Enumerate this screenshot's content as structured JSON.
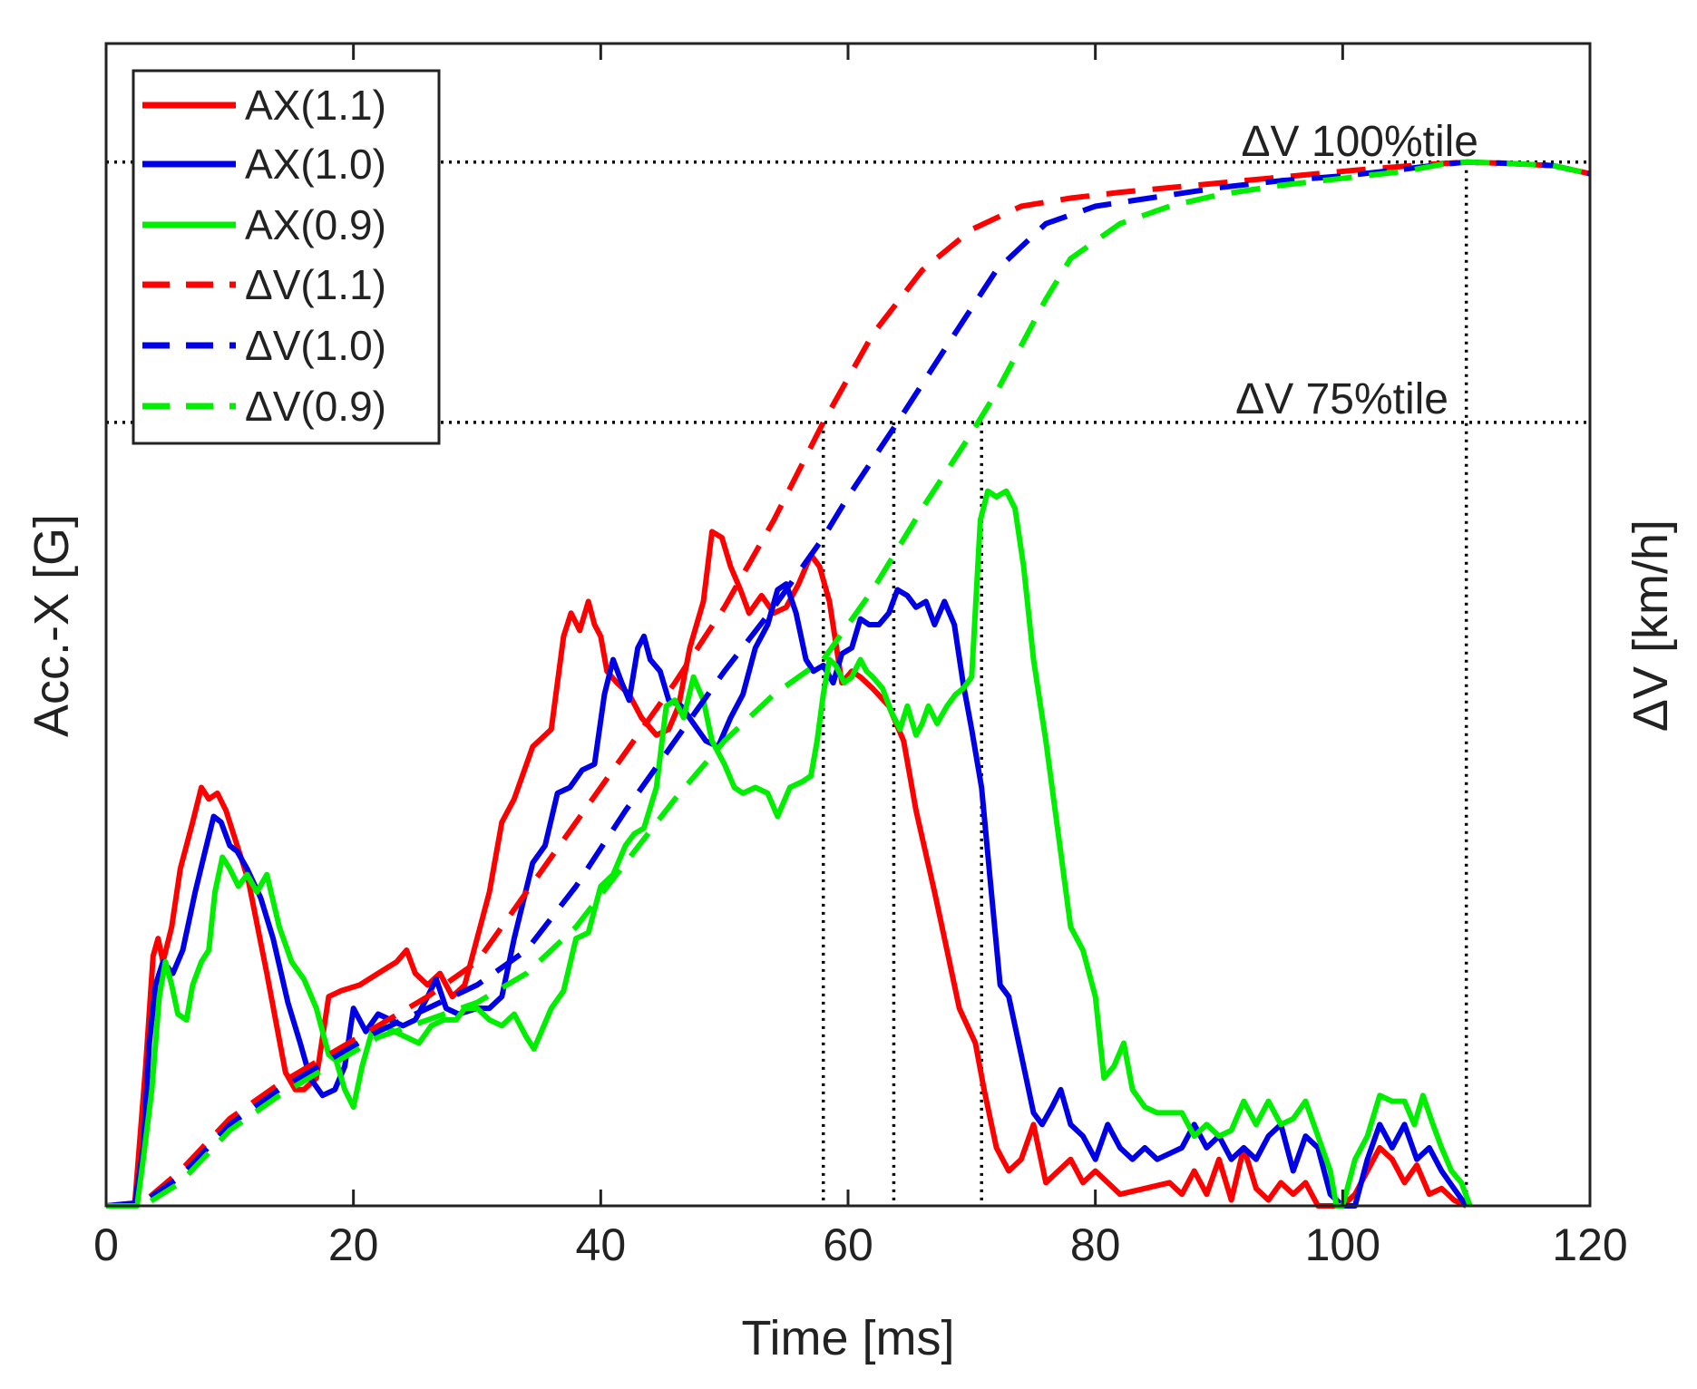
{
  "chart_data": {
    "type": "line",
    "xlabel": "Time [ms]",
    "ylabel_left": "Acc.-X [G]",
    "ylabel_right": "ΔV [km/h]",
    "xlim": [
      0,
      120
    ],
    "ylim": [
      0,
      100
    ],
    "xticks": [
      0,
      20,
      40,
      60,
      80,
      100,
      120
    ],
    "xtick_labels": [
      "0",
      "20",
      "40",
      "60",
      "80",
      "100",
      "120"
    ],
    "grid": false,
    "legend_position": "top-left",
    "colors": {
      "red": "#ff0000",
      "blue": "#0000e6",
      "green": "#00ee00",
      "ref": "#000000"
    },
    "reference_lines": [
      {
        "name": "dv-100",
        "label": "ΔV 100%tile",
        "y": 89.8
      },
      {
        "name": "dv-75",
        "label": "ΔV 75%tile",
        "y": 67.4
      }
    ],
    "marker_times": [
      {
        "name": "t-ax11",
        "x": 58.0,
        "y_top": 67.4
      },
      {
        "name": "t-ax10",
        "x": 63.7,
        "y_top": 67.4
      },
      {
        "name": "t-ax09",
        "x": 70.8,
        "y_top": 67.4
      },
      {
        "name": "t-max",
        "x": 110.0,
        "y_top": 89.8
      }
    ],
    "series": [
      {
        "name": "AX(1.1)",
        "color": "#ff0000",
        "dash": false,
        "x": [
          0,
          2.3,
          3.2,
          3.8,
          4.2,
          4.6,
          5.3,
          6.0,
          7.0,
          7.7,
          8.3,
          9.0,
          9.7,
          10.3,
          11.5,
          13.0,
          14.5,
          15.3,
          16.0,
          17.0,
          18.0,
          19.0,
          20.5,
          22.0,
          23.5,
          24.3,
          25.0,
          26.0,
          27.0,
          28.0,
          29.0,
          30.0,
          31.0,
          32.0,
          33.0,
          34.5,
          36.0,
          37.0,
          37.6,
          38.3,
          39.0,
          39.5,
          40.0,
          40.5,
          41.3,
          42.3,
          43.3,
          44.5,
          45.5,
          46.3,
          47.2,
          48.3,
          49.0,
          49.8,
          50.5,
          51.3,
          52.0,
          53.0,
          54.0,
          55.0,
          56.0,
          57.0,
          57.7,
          58.5,
          59.5,
          60.3,
          61.0,
          62.0,
          63.3,
          64.5,
          65.5,
          67.0,
          68.0,
          69.0,
          70.3,
          71.0,
          72.0,
          73.0,
          74.0,
          75.0,
          76.0,
          78.0,
          79.0,
          80.0,
          82.0,
          84.0,
          86.0,
          87.0,
          88.0,
          89.0,
          90.0,
          91.0,
          92.0,
          93.0,
          94.0,
          95.0,
          96.0,
          97.0,
          98.0,
          99.0,
          100.0,
          101.0,
          102.0,
          103.0,
          104.0,
          105.0,
          106.0,
          107.0,
          108.0,
          109.0,
          110.0
        ],
        "y": [
          0,
          0,
          12,
          21.5,
          23,
          21,
          24,
          29,
          33,
          36,
          35,
          35.5,
          34,
          32,
          28,
          20,
          11.5,
          10,
          10,
          11,
          18,
          18.5,
          19,
          20,
          21,
          22,
          20,
          19,
          20,
          18,
          19,
          23,
          27,
          33,
          35,
          39.5,
          41,
          49,
          51,
          49.5,
          52,
          50,
          49,
          46,
          45,
          44,
          42,
          40.5,
          41,
          43,
          48,
          52,
          58,
          57.5,
          55,
          53,
          51,
          52.5,
          51,
          51.5,
          53.5,
          56,
          55,
          52,
          45,
          46,
          45.5,
          44.5,
          43,
          40,
          34,
          27,
          22,
          17,
          14,
          10,
          5,
          3,
          4,
          7,
          2,
          4,
          2,
          3,
          1,
          1.5,
          2,
          1,
          3,
          1,
          4,
          0.5,
          5,
          1.5,
          0.5,
          2,
          1,
          2,
          0,
          -2,
          0,
          1,
          3,
          5,
          4,
          2,
          3.5,
          1,
          1.5,
          0.5,
          0
        ]
      },
      {
        "name": "AX(1.0)",
        "color": "#0000e6",
        "dash": false,
        "x": [
          0,
          2.3,
          3.0,
          3.5,
          4.0,
          4.6,
          5.4,
          6.2,
          7.2,
          8.0,
          8.7,
          9.3,
          10.0,
          10.6,
          11.4,
          12.5,
          13.5,
          14.7,
          15.7,
          16.5,
          17.5,
          18.5,
          19.3,
          20.0,
          21.0,
          22.0,
          23.0,
          24.0,
          25.0,
          26.0,
          26.7,
          27.5,
          28.5,
          30.0,
          31.0,
          32.0,
          33.0,
          34.5,
          35.5,
          36.5,
          37.5,
          38.5,
          39.5,
          40.3,
          41.0,
          41.7,
          42.3,
          43.0,
          43.5,
          44.0,
          44.8,
          45.5,
          46.5,
          47.5,
          48.5,
          49.5,
          50.5,
          51.5,
          52.5,
          53.5,
          54.3,
          55.0,
          55.8,
          56.6,
          57.2,
          58.0,
          58.8,
          59.5,
          60.3,
          61.0,
          61.7,
          62.5,
          63.3,
          64.0,
          64.8,
          65.5,
          66.3,
          67.0,
          67.8,
          68.6,
          69.3,
          70.0,
          70.8,
          71.5,
          72.3,
          73.0,
          74.0,
          75.0,
          75.7,
          76.5,
          77.2,
          78.0,
          79.0,
          80.0,
          81.0,
          82.0,
          83.0,
          84.0,
          85.0,
          86.0,
          87.0,
          88.0,
          89.0,
          90.0,
          91.0,
          92.0,
          93.0,
          94.0,
          95.0,
          96.0,
          97.0,
          98.0,
          99.0,
          100.0,
          101.0,
          102.0,
          103.0,
          104.0,
          105.0,
          106.0,
          107.0,
          108.0,
          109.0,
          110.0
        ],
        "y": [
          0,
          0,
          5,
          14,
          19,
          21,
          20,
          22,
          27,
          30.5,
          33.5,
          33,
          31,
          30.5,
          29,
          26.5,
          23,
          17.5,
          14,
          11,
          9.5,
          10,
          12,
          17,
          15,
          16.5,
          16,
          15.5,
          16,
          18,
          19.5,
          17,
          16.5,
          17,
          17,
          18,
          23,
          29.5,
          31,
          35.5,
          36,
          37.5,
          38,
          44,
          47,
          45,
          43.5,
          48,
          49,
          47,
          46,
          43.5,
          43,
          41.5,
          40,
          39.5,
          42,
          44,
          48,
          50,
          53,
          53.5,
          51,
          47,
          46,
          46.5,
          45,
          47.5,
          48,
          50.5,
          50,
          50,
          51,
          53,
          52.5,
          51.5,
          52,
          50,
          52,
          50,
          45,
          41,
          36,
          28,
          19,
          18,
          13,
          8,
          7,
          8.5,
          10,
          7,
          6,
          4,
          7,
          5,
          4,
          5,
          4,
          4.5,
          5,
          7,
          5,
          6,
          4,
          5,
          4,
          6,
          7,
          3,
          6,
          5,
          1,
          -1,
          0,
          4,
          7,
          5,
          7,
          4,
          5,
          3,
          1.5,
          0
        ]
      },
      {
        "name": "AX(0.9)",
        "color": "#00ee00",
        "dash": false,
        "x": [
          0,
          2.5,
          3.0,
          3.7,
          4.3,
          4.8,
          5.3,
          5.8,
          6.5,
          7.0,
          7.7,
          8.3,
          8.8,
          9.4,
          10.0,
          10.7,
          11.4,
          12.2,
          13.0,
          14.0,
          15.0,
          16.0,
          17.0,
          18.0,
          18.6,
          19.3,
          20.0,
          20.7,
          21.5,
          22.4,
          23.3,
          24.3,
          25.3,
          26.3,
          27.3,
          28.3,
          29.0,
          30.0,
          31.0,
          32.0,
          33.0,
          34.0,
          34.6,
          35.0,
          36.0,
          37.0,
          38.0,
          39.0,
          40.0,
          41.0,
          42.0,
          42.7,
          43.5,
          44.5,
          45.3,
          46.0,
          46.7,
          47.5,
          48.3,
          49.0,
          50.0,
          50.8,
          51.5,
          52.5,
          53.5,
          54.3,
          55.3,
          56.3,
          57.0,
          57.5,
          58.0,
          58.5,
          59.0,
          59.7,
          60.3,
          61.0,
          61.5,
          62.0,
          62.8,
          63.5,
          64.2,
          64.8,
          65.5,
          66.0,
          66.5,
          67.2,
          68.0,
          68.7,
          69.3,
          70.0,
          70.7,
          71.3,
          72.0,
          72.8,
          73.5,
          74.2,
          75.0,
          76.0,
          77.0,
          78.0,
          79.0,
          80.0,
          80.7,
          81.5,
          82.3,
          83.0,
          84.0,
          85.0,
          86.0,
          87.0,
          88.0,
          89.0,
          90.0,
          91.0,
          92.0,
          93.0,
          94.0,
          95.0,
          96.0,
          97.0,
          98.0,
          99.0,
          99.5,
          100.0,
          101.0,
          102.0,
          103.0,
          104.0,
          105.0,
          105.8,
          106.5,
          107.3,
          108.0,
          108.8,
          109.6,
          110.3
        ],
        "y": [
          0,
          0,
          4,
          10,
          18,
          21,
          19,
          16.5,
          16,
          19,
          21,
          22,
          27,
          30,
          29,
          27.5,
          28.5,
          27,
          28.5,
          24,
          21,
          19.5,
          17,
          13,
          12.5,
          10,
          8.5,
          12,
          15,
          15.5,
          15,
          14.5,
          14,
          15.5,
          16,
          16,
          17,
          17,
          16,
          15.5,
          16.5,
          14.5,
          13.5,
          14.5,
          17,
          18.5,
          23,
          23.5,
          27.5,
          28.5,
          31,
          32,
          32.5,
          36,
          43,
          43.5,
          42,
          45.5,
          43.5,
          40,
          38,
          36,
          35.5,
          36,
          35.5,
          33.5,
          36,
          36.5,
          37,
          40,
          44,
          47,
          46.5,
          45,
          45.5,
          47,
          46,
          45.5,
          44.5,
          42.5,
          41,
          43,
          40.5,
          41.5,
          43,
          41.5,
          43,
          44,
          44.5,
          45.5,
          59,
          61.5,
          61,
          61.5,
          60,
          55,
          47,
          40,
          32,
          24,
          22,
          18,
          11,
          12,
          14,
          10,
          8.5,
          8,
          8,
          8,
          6,
          7,
          6,
          6.5,
          9,
          7,
          9,
          7,
          7.5,
          9,
          6,
          3,
          0,
          -2,
          4,
          6,
          9.5,
          9,
          9,
          7,
          9.5,
          7,
          5,
          3,
          2,
          0
        ]
      },
      {
        "name": "ΔV(1.1)",
        "color": "#ff0000",
        "dash": true,
        "x": [
          0,
          3,
          6,
          10,
          14,
          18,
          22,
          26,
          30,
          34,
          38,
          42,
          46,
          50,
          54,
          58,
          62,
          66,
          70,
          74,
          78,
          82,
          88,
          95,
          102,
          107,
          110,
          113,
          117,
          120
        ],
        "y": [
          0,
          0.3,
          3,
          7.5,
          10.5,
          13,
          15.5,
          18,
          21,
          27,
          33,
          39,
          45,
          51.5,
          59,
          67.4,
          75,
          80.5,
          84,
          86,
          86.7,
          87.2,
          87.8,
          88.5,
          89.2,
          89.6,
          89.8,
          89.7,
          89.5,
          88.8
        ]
      },
      {
        "name": "ΔV(1.0)",
        "color": "#0000e6",
        "dash": true,
        "x": [
          0,
          3,
          6,
          10,
          14,
          18,
          22,
          26,
          30,
          34,
          38,
          42,
          46,
          50,
          54,
          58,
          60,
          64,
          68,
          72,
          76,
          80,
          85,
          90,
          95,
          100,
          105,
          108,
          110,
          113,
          117,
          120
        ],
        "y": [
          0,
          0.3,
          2.5,
          7,
          10,
          12.5,
          15,
          17,
          19,
          22,
          27.5,
          34,
          40,
          46,
          51.5,
          57.5,
          61,
          67.4,
          74,
          80.5,
          84.5,
          86,
          86.8,
          87.6,
          88.2,
          88.6,
          89.2,
          89.6,
          89.8,
          89.7,
          89.5,
          88.8
        ]
      },
      {
        "name": "ΔV(0.9)",
        "color": "#00ee00",
        "dash": true,
        "x": [
          0,
          3,
          6,
          10,
          14,
          18,
          22,
          26,
          30,
          34,
          38,
          42,
          46,
          50,
          54,
          58,
          62,
          66,
          70,
          72,
          74,
          76,
          78,
          82,
          86,
          90,
          95,
          100,
          105,
          108,
          110,
          113,
          117,
          120
        ],
        "y": [
          0,
          0,
          2,
          6.5,
          9.5,
          12,
          14.5,
          16,
          17.5,
          20,
          24,
          29.5,
          35,
          40,
          44,
          47,
          53,
          60,
          66.5,
          70,
          74,
          78,
          81.5,
          84.5,
          86,
          87,
          87.8,
          88.4,
          89,
          89.6,
          89.8,
          89.7,
          89.5,
          88.8
        ]
      }
    ]
  }
}
